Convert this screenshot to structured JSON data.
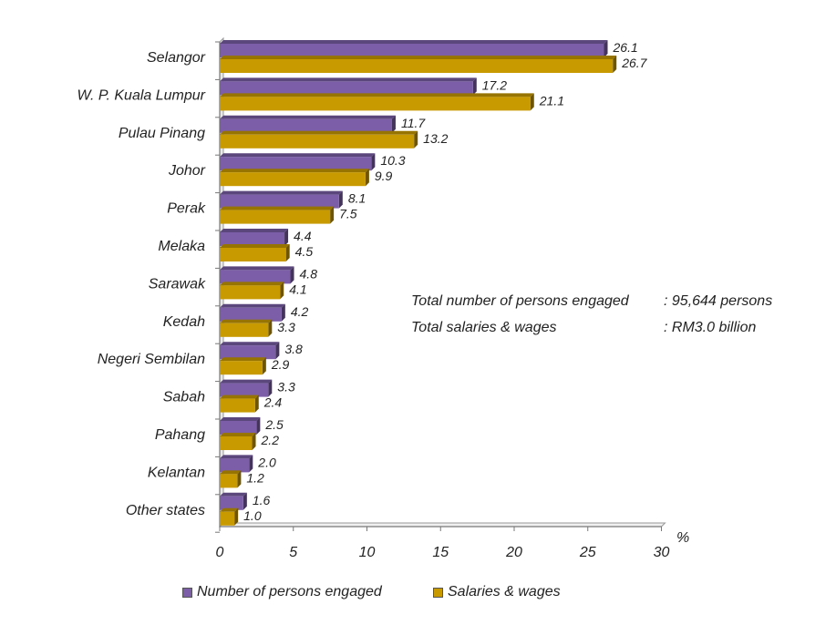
{
  "chart_data": {
    "type": "bar",
    "orientation": "horizontal",
    "categories": [
      "Selangor",
      "W. P. Kuala Lumpur",
      "Pulau Pinang",
      "Johor",
      "Perak",
      "Melaka",
      "Sarawak",
      "Kedah",
      "Negeri Sembilan",
      "Sabah",
      "Pahang",
      "Kelantan",
      "Other states"
    ],
    "series": [
      {
        "name": "Number of persons engaged",
        "values": [
          26.1,
          17.2,
          11.7,
          10.3,
          8.1,
          4.4,
          4.8,
          4.2,
          3.8,
          3.3,
          2.5,
          2.0,
          1.6
        ],
        "labels": [
          "26.1",
          "17.2",
          "11.7",
          "10.3",
          "8.1",
          "4.4",
          "4.8",
          "4.2",
          "3.8",
          "3.3",
          "2.5",
          "2.0",
          "1.6"
        ],
        "color": "#7b5ea7"
      },
      {
        "name": "Salaries & wages",
        "values": [
          26.7,
          21.1,
          13.2,
          9.9,
          7.5,
          4.5,
          4.1,
          3.3,
          2.9,
          2.4,
          2.2,
          1.2,
          1.0
        ],
        "labels": [
          "26.7",
          "21.1",
          "13.2",
          "9.9",
          "7.5",
          "4.5",
          "4.1",
          "3.3",
          "2.9",
          "2.4",
          "2.2",
          "1.2",
          "1.0"
        ],
        "color": "#c99a00"
      }
    ],
    "x_ticks": [
      "0",
      "5",
      "10",
      "15",
      "20",
      "25",
      "30"
    ],
    "xlim": [
      0,
      30
    ],
    "x_unit": "%",
    "grid": false,
    "legend_position": "bottom"
  },
  "notes": {
    "persons_label": "Total number of persons engaged",
    "persons_value": ": 95,644 persons",
    "salaries_label": "Total salaries & wages",
    "salaries_value": ": RM3.0 billion"
  },
  "legend": {
    "persons": "Number of persons engaged",
    "salaries": "Salaries & wages"
  }
}
